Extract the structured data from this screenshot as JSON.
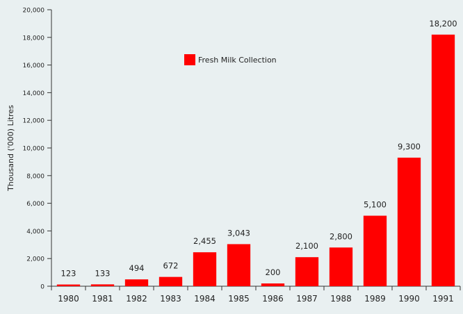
{
  "colors": {
    "background": "#e9f0f1",
    "bar": "#ff0000",
    "axis": "#333333",
    "text": "#222222"
  },
  "chart_data": {
    "type": "bar",
    "title": "",
    "xlabel": "",
    "ylabel": "Thousand ('000) Litres",
    "categories": [
      "1980",
      "1981",
      "1982",
      "1983",
      "1984",
      "1985",
      "1986",
      "1987",
      "1988",
      "1989",
      "1990",
      "1991"
    ],
    "series": [
      {
        "name": "Fresh Milk Collection",
        "values": [
          123,
          133,
          494,
          672,
          2455,
          3043,
          200,
          2100,
          2800,
          5100,
          9300,
          18200
        ],
        "data_labels": [
          "123",
          "133",
          "494",
          "672",
          "2,455",
          "3,043",
          "200",
          "2,100",
          "2,800",
          "5,100",
          "9,300",
          "18,200"
        ]
      }
    ],
    "ylim": [
      0,
      20000
    ],
    "yticks": [
      0,
      2000,
      4000,
      6000,
      8000,
      10000,
      12000,
      14000,
      16000,
      18000,
      20000
    ],
    "ytick_labels": [
      "0",
      "2,000",
      "4,000",
      "6,000",
      "8,000",
      "10,000",
      "12,000",
      "14,000",
      "16,000",
      "18,000",
      "20,000"
    ],
    "grid": false,
    "legend": {
      "position": "top-center",
      "entries": [
        "Fresh Milk Collection"
      ]
    }
  }
}
